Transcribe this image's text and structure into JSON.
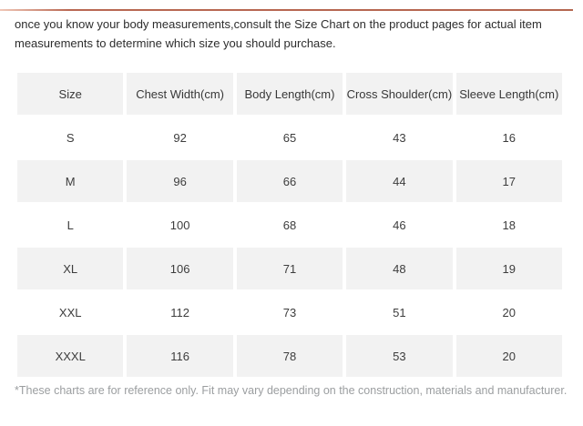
{
  "colors": {
    "accent_line": "#b4664f",
    "row_stripe": "#f2f2f2",
    "footnote_text": "#9b9ea0",
    "body_text": "#2d2d2d"
  },
  "intro": {
    "text": "once you know your body measurements,consult the Size Chart on the product pages for actual item measurements to determine which size you should purchase."
  },
  "size_chart": {
    "columns": [
      "Size",
      "Chest Width(cm)",
      "Body Length(cm)",
      "Cross Shoulder(cm)",
      "Sleeve Length(cm)"
    ],
    "rows": [
      [
        "S",
        "92",
        "65",
        "43",
        "16"
      ],
      [
        "M",
        "96",
        "66",
        "44",
        "17"
      ],
      [
        "L",
        "100",
        "68",
        "46",
        "18"
      ],
      [
        "XL",
        "106",
        "71",
        "48",
        "19"
      ],
      [
        "XXL",
        "112",
        "73",
        "51",
        "20"
      ],
      [
        "XXXL",
        "116",
        "78",
        "53",
        "20"
      ]
    ]
  },
  "footnote": {
    "text": "*These charts are for reference only. Fit may vary depending on the construction, materials and manufacturer."
  }
}
